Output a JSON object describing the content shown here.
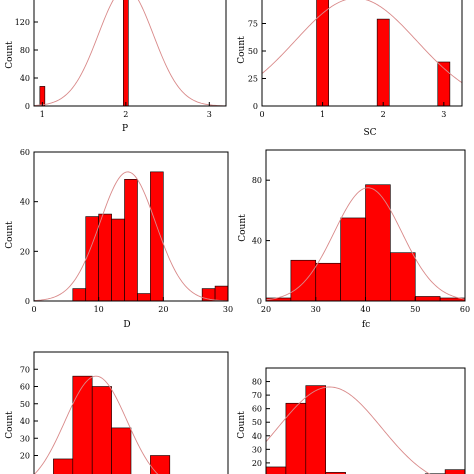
{
  "chart_data": [
    {
      "id": "P",
      "type": "bar",
      "xlabel": "P",
      "ylabel": "Count",
      "xlim": [
        0.9,
        3.2
      ],
      "ylim": [
        0,
        160
      ],
      "xticks": [
        1,
        2,
        3
      ],
      "yticks": [
        0,
        40,
        80,
        120
      ],
      "bar_width": 0.06,
      "bars": [
        {
          "x": 1,
          "y": 28
        },
        {
          "x": 2,
          "y": 160
        }
      ],
      "curve": {
        "mu": 2.0,
        "sigma": 0.33,
        "peak": 168
      }
    },
    {
      "id": "SC",
      "type": "bar",
      "xlabel": "SC",
      "ylabel": "Count",
      "xlim": [
        0,
        3.3
      ],
      "ylim": [
        0,
        100
      ],
      "xticks": [
        0,
        1,
        2,
        3
      ],
      "yticks": [
        0,
        25,
        50,
        75
      ],
      "bar_width": 0.2,
      "bars": [
        {
          "x": 1,
          "y": 100
        },
        {
          "x": 2,
          "y": 79
        },
        {
          "x": 3,
          "y": 40
        }
      ],
      "curve": {
        "mu": 1.55,
        "sigma": 1.0,
        "peak": 98
      }
    },
    {
      "id": "D",
      "type": "bar",
      "xlabel": "D",
      "ylabel": "Count",
      "xlim": [
        0,
        30
      ],
      "ylim": [
        0,
        60
      ],
      "xticks": [
        0,
        10,
        20,
        30
      ],
      "yticks": [
        0,
        20,
        40,
        60
      ],
      "bar_width": 2,
      "bars": [
        {
          "x": 7,
          "y": 5
        },
        {
          "x": 9,
          "y": 34
        },
        {
          "x": 11,
          "y": 35
        },
        {
          "x": 13,
          "y": 33
        },
        {
          "x": 15,
          "y": 49
        },
        {
          "x": 17,
          "y": 3
        },
        {
          "x": 19,
          "y": 52
        },
        {
          "x": 27,
          "y": 5
        },
        {
          "x": 29,
          "y": 6
        }
      ],
      "curve": {
        "mu": 14.5,
        "sigma": 4.3,
        "peak": 52
      }
    },
    {
      "id": "fc",
      "type": "bar",
      "xlabel": "fc",
      "ylabel": "Count",
      "xlim": [
        20,
        60
      ],
      "ylim": [
        0,
        100
      ],
      "xticks": [
        20,
        30,
        40,
        50,
        60
      ],
      "yticks": [
        0,
        40,
        80
      ],
      "bar_width": 5,
      "bars": [
        {
          "x": 22.5,
          "y": 2
        },
        {
          "x": 27.5,
          "y": 27
        },
        {
          "x": 32.5,
          "y": 25
        },
        {
          "x": 37.5,
          "y": 55
        },
        {
          "x": 42.5,
          "y": 77
        },
        {
          "x": 47.5,
          "y": 32
        },
        {
          "x": 52.5,
          "y": 3
        },
        {
          "x": 57.5,
          "y": 2
        }
      ],
      "curve": {
        "mu": 40.5,
        "sigma": 6.8,
        "peak": 75
      }
    },
    {
      "id": "E",
      "type": "bar",
      "xlabel": "",
      "ylabel": "Count",
      "xlim": [
        0,
        10
      ],
      "ylim": [
        0,
        80
      ],
      "xticks": [],
      "yticks": [
        20,
        30,
        40,
        50,
        60,
        70
      ],
      "bar_width": 1,
      "bars": [
        {
          "x": 1.5,
          "y": 18
        },
        {
          "x": 2.5,
          "y": 66
        },
        {
          "x": 3.5,
          "y": 60
        },
        {
          "x": 4.5,
          "y": 36
        },
        {
          "x": 6.5,
          "y": 20
        }
      ],
      "curve": {
        "mu": 3.2,
        "sigma": 1.6,
        "peak": 66
      }
    },
    {
      "id": "F",
      "type": "bar",
      "xlabel": "",
      "ylabel": "Count",
      "xlim": [
        0,
        10
      ],
      "ylim": [
        0,
        90
      ],
      "xticks": [],
      "yticks": [
        20,
        30,
        40,
        50,
        60,
        70,
        80
      ],
      "bar_width": 1,
      "bars": [
        {
          "x": 0.5,
          "y": 17
        },
        {
          "x": 1.5,
          "y": 64
        },
        {
          "x": 2.5,
          "y": 77
        },
        {
          "x": 3.5,
          "y": 13
        },
        {
          "x": 8.5,
          "y": 12
        },
        {
          "x": 9.5,
          "y": 15
        }
      ],
      "curve": {
        "mu": 3.2,
        "sigma": 2.6,
        "peak": 76
      }
    }
  ]
}
